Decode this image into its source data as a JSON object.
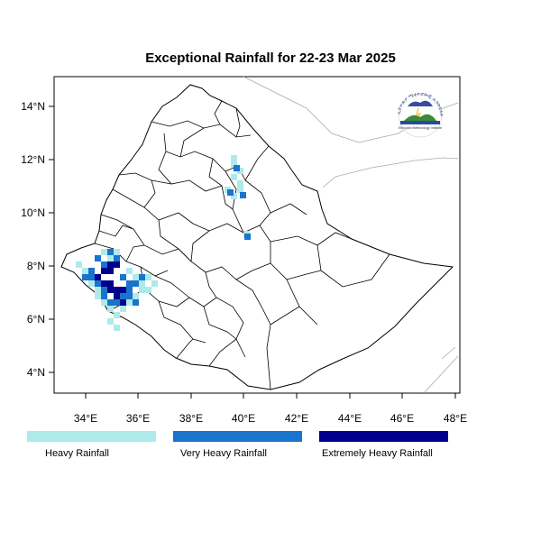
{
  "title": "Exceptional Rainfall for 22-23 Mar 2025",
  "axes": {
    "x_ticks": [
      "34°E",
      "36°E",
      "38°E",
      "40°E",
      "42°E",
      "44°E",
      "46°E",
      "48°E"
    ],
    "y_ticks": [
      "14°N",
      "12°N",
      "10°N",
      "8°N",
      "6°N",
      "4°N"
    ],
    "lon_range": [
      32.8,
      48.1
    ],
    "lat_range": [
      3.2,
      15.0
    ]
  },
  "logo": {
    "top_text": "የኢትዮጵያ ሜቲዮሮሎጂ ኢንስቲቱት",
    "bottom_text": "Ethiopian Meteorology Institute"
  },
  "legend": [
    {
      "label": "Heavy Rainfall",
      "color": "#aeeaea"
    },
    {
      "label": "Very Heavy Rainfall",
      "color": "#1874cd"
    },
    {
      "label": "Extremely Heavy Rainfall",
      "color": "#00008b"
    }
  ],
  "colors": {
    "heavy": "#aeeaea",
    "very_heavy": "#1874cd",
    "extreme": "#00008b"
  }
}
